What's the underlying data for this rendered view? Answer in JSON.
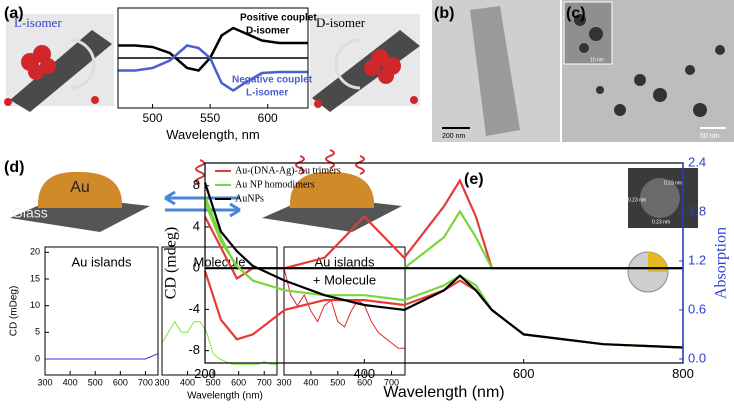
{
  "panel_labels": [
    "(a)",
    "(b)",
    "(c)",
    "(d)",
    "(e)"
  ],
  "panel_a": {
    "left_label": "L-isomer",
    "right_label": "D-isomer"
  },
  "panel_b": {
    "scale_bar": "200 nm"
  },
  "panel_c": {
    "scale_bar": "50 nm",
    "inset_scale_bar": "10 nm"
  },
  "panel_d": {
    "substrate": "Glass",
    "metal": "Au"
  },
  "panel_e": {
    "inset_labels": [
      "0.23 nm",
      "0.23 nm",
      "0.23 nm"
    ]
  },
  "chart_data": [
    {
      "type": "line",
      "xlabel": "Wavelength, nm",
      "x": [
        470,
        485,
        500,
        515,
        530,
        540,
        550,
        560,
        570,
        580,
        595,
        610,
        635
      ],
      "xlim": [
        470,
        635
      ],
      "xticks": [
        500,
        550,
        600
      ],
      "ylim": [
        -1,
        1
      ],
      "series": [
        {
          "color": "#000000",
          "values": [
            0.25,
            0.25,
            0.22,
            0.1,
            -0.2,
            -0.25,
            0,
            0.45,
            0.6,
            0.5,
            0.35,
            0.3,
            0.3
          ]
        },
        {
          "color": "#4a5fd0",
          "values": [
            -0.25,
            -0.25,
            -0.2,
            -0.05,
            0.25,
            0.2,
            0,
            -0.5,
            -0.65,
            -0.5,
            -0.3,
            -0.28,
            -0.28
          ]
        }
      ],
      "annotations": [
        {
          "text": "Positive couplet",
          "color": "#000000"
        },
        {
          "text": "D-isomer",
          "color": "#000000"
        },
        {
          "text": "Negative couplet",
          "color": "#4a5fd0"
        },
        {
          "text": "L-isomer",
          "color": "#4a5fd0"
        }
      ]
    },
    {
      "type": "line",
      "title_lines": [
        "Au islands"
      ],
      "ylabel": "CD (mDeg)",
      "x": [
        300,
        325,
        350,
        375,
        400,
        425,
        450,
        475,
        500,
        525,
        550,
        575,
        600,
        625,
        650,
        675,
        700,
        725,
        750
      ],
      "xlim": [
        300,
        750
      ],
      "xticks": [
        300,
        400,
        500,
        600,
        700
      ],
      "ylim": [
        -3,
        21
      ],
      "yticks": [
        0,
        5,
        10,
        15,
        20
      ],
      "series": [
        {
          "color": "#2b36d8",
          "values": [
            0,
            0,
            0,
            0,
            0,
            0,
            0,
            0,
            0,
            0,
            0,
            0,
            0,
            0,
            0,
            0,
            0,
            0.5,
            1
          ]
        }
      ]
    },
    {
      "type": "line",
      "title_lines": [
        "Molecule"
      ],
      "x": [
        300,
        325,
        350,
        375,
        400,
        425,
        450,
        475,
        500,
        525,
        550,
        575,
        600,
        625,
        650,
        675,
        700,
        725,
        750
      ],
      "xlim": [
        300,
        750
      ],
      "xticks": [
        300,
        400,
        500,
        600,
        700
      ],
      "ylim": [
        -3,
        21
      ],
      "series": [
        {
          "color": "#7de83a",
          "values": [
            3,
            5,
            7,
            5,
            5,
            7,
            7,
            5,
            1,
            0,
            -0.5,
            -1,
            -1,
            -1,
            -1,
            -1,
            -0.5,
            -1,
            -1
          ]
        }
      ]
    },
    {
      "type": "line",
      "title_lines": [
        "Au islands",
        "+ Molecule"
      ],
      "xlabel": "Wavelength (nm)",
      "x": [
        300,
        325,
        350,
        375,
        400,
        425,
        450,
        475,
        500,
        525,
        550,
        575,
        600,
        625,
        650,
        675,
        700,
        725,
        750
      ],
      "xlim": [
        300,
        750
      ],
      "xticks": [
        300,
        400,
        500,
        600,
        700
      ],
      "ylim": [
        -3,
        21
      ],
      "series": [
        {
          "color": "#e0282c",
          "values": [
            17,
            12,
            10,
            12,
            9,
            7,
            10,
            11,
            7,
            6,
            9,
            11,
            10,
            7,
            5,
            4,
            3,
            2,
            2
          ]
        }
      ]
    },
    {
      "type": "line",
      "xlabel": "Wavelength (nm)",
      "ylabel": "CD (mdeg)",
      "y2label": "Absorption",
      "x": [
        200,
        220,
        240,
        260,
        300,
        350,
        400,
        450,
        500,
        520,
        540,
        560,
        600,
        700,
        800
      ],
      "xlim": [
        200,
        800
      ],
      "xticks": [
        200,
        400,
        600,
        800
      ],
      "ylim": [
        -9.2,
        10.2
      ],
      "yticks": [
        -8,
        -4,
        0,
        4,
        8
      ],
      "y2lim": [
        -0.05,
        2.4
      ],
      "y2ticks": [
        {
          "value": 0,
          "label": "0.0"
        },
        0.6,
        1.2,
        1.8,
        2.4
      ],
      "legend": "upper left",
      "series": [
        {
          "name": "Au-(DNA-Ag)-Au trimers",
          "color": "#e53a3a",
          "values": [
            5,
            2,
            -1,
            0,
            0,
            1,
            5,
            1,
            6,
            8.5,
            5,
            0,
            0,
            0,
            0
          ]
        },
        {
          "name": "Au NP homodimers",
          "color": "#7ad63a",
          "values": [
            7,
            3,
            0,
            0,
            0,
            0,
            0,
            0,
            3,
            5.5,
            3,
            0,
            0,
            0,
            0
          ]
        },
        {
          "name": "AuNPs",
          "color": "#000000",
          "values": [
            0,
            0,
            0,
            0,
            0,
            0,
            0,
            0,
            0,
            0,
            0,
            0,
            0,
            0,
            0
          ]
        },
        {
          "color": "#e53a3a",
          "axis": "y2",
          "values": [
            1.08,
            0.48,
            0.24,
            0.3,
            0.6,
            0.72,
            0.72,
            0.66,
            0.84,
            0.96,
            0.84,
            0.6,
            0.3,
            0.18,
            0.14
          ]
        },
        {
          "color": "#7ad63a",
          "axis": "y2",
          "values": [
            1.92,
            1.44,
            1.14,
            0.96,
            0.84,
            0.78,
            0.78,
            0.72,
            0.9,
            1.02,
            0.9,
            0.6,
            0.3,
            0.18,
            0.14
          ]
        },
        {
          "color": "#000000",
          "axis": "y2",
          "values": [
            2.16,
            1.56,
            1.32,
            1.14,
            0.96,
            0.78,
            0.66,
            0.6,
            0.84,
            1.02,
            0.84,
            0.6,
            0.3,
            0.18,
            0.14
          ]
        }
      ]
    }
  ]
}
